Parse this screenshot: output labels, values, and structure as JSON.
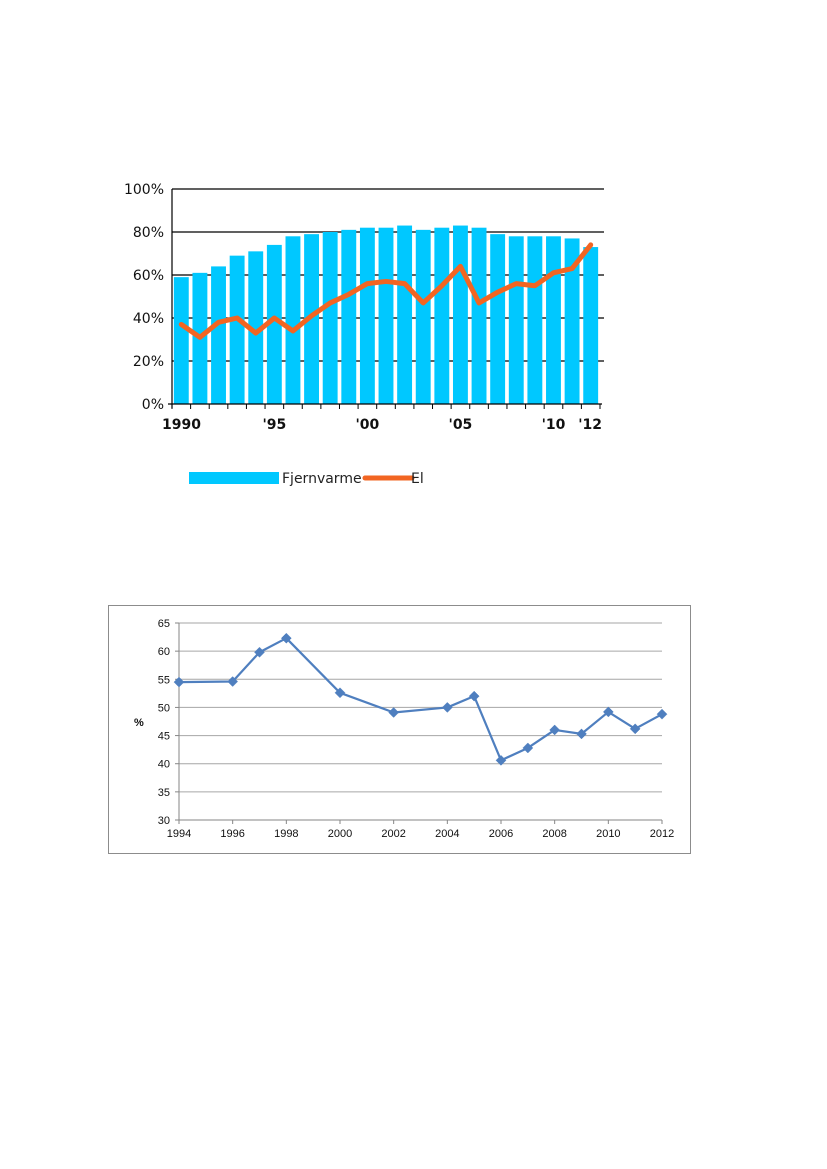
{
  "chart_data": [
    {
      "type": "bar",
      "title": "",
      "ylim": [
        0,
        100
      ],
      "y_ticks": [
        "0%",
        "20%",
        "40%",
        "60%",
        "80%",
        "100%"
      ],
      "x_tick_labels": [
        {
          "year": 1990,
          "label": "1990"
        },
        {
          "year": 1995,
          "label": "'95"
        },
        {
          "year": 2000,
          "label": "'00"
        },
        {
          "year": 2005,
          "label": "'05"
        },
        {
          "year": 2010,
          "label": "'10"
        },
        {
          "year": 2012,
          "label": "'12"
        }
      ],
      "categories": [
        1990,
        1991,
        1992,
        1993,
        1994,
        1995,
        1996,
        1997,
        1998,
        1999,
        2000,
        2001,
        2002,
        2003,
        2004,
        2005,
        2006,
        2007,
        2008,
        2009,
        2010,
        2011,
        2012
      ],
      "grid": true,
      "legend_position": "bottom",
      "series": [
        {
          "name": "Fjernvarme",
          "kind": "bar",
          "color": "#00c8ff",
          "values": [
            59,
            61,
            64,
            69,
            71,
            74,
            78,
            79,
            80,
            81,
            82,
            82,
            83,
            81,
            82,
            83,
            82,
            79,
            78,
            78,
            78,
            77,
            73
          ]
        },
        {
          "name": "El",
          "kind": "line",
          "color": "#f26522",
          "values": [
            37,
            31,
            38,
            40,
            33,
            40,
            34,
            41,
            47,
            51,
            56,
            57,
            56,
            47,
            55,
            64,
            47,
            52,
            56,
            55,
            61,
            63,
            74
          ]
        }
      ]
    },
    {
      "type": "line",
      "title": "",
      "ylabel": "%",
      "ylim": [
        30,
        65
      ],
      "y_ticks": [
        30,
        35,
        40,
        45,
        50,
        55,
        60,
        65
      ],
      "x_ticks": [
        1994,
        1996,
        1998,
        2000,
        2002,
        2004,
        2006,
        2008,
        2010,
        2012
      ],
      "xlim": [
        1994,
        2012
      ],
      "grid": true,
      "series": [
        {
          "color": "#4f7fbf",
          "marker": "diamond",
          "x": [
            1994,
            1996,
            1997,
            1998,
            2000,
            2002,
            2004,
            2005,
            2006,
            2007,
            2008,
            2009,
            2010,
            2011,
            2012
          ],
          "y": [
            54.5,
            54.6,
            59.8,
            62.3,
            52.6,
            49.1,
            50.0,
            52.0,
            40.6,
            42.8,
            46.0,
            45.3,
            49.2,
            46.2,
            48.8
          ]
        }
      ]
    }
  ]
}
